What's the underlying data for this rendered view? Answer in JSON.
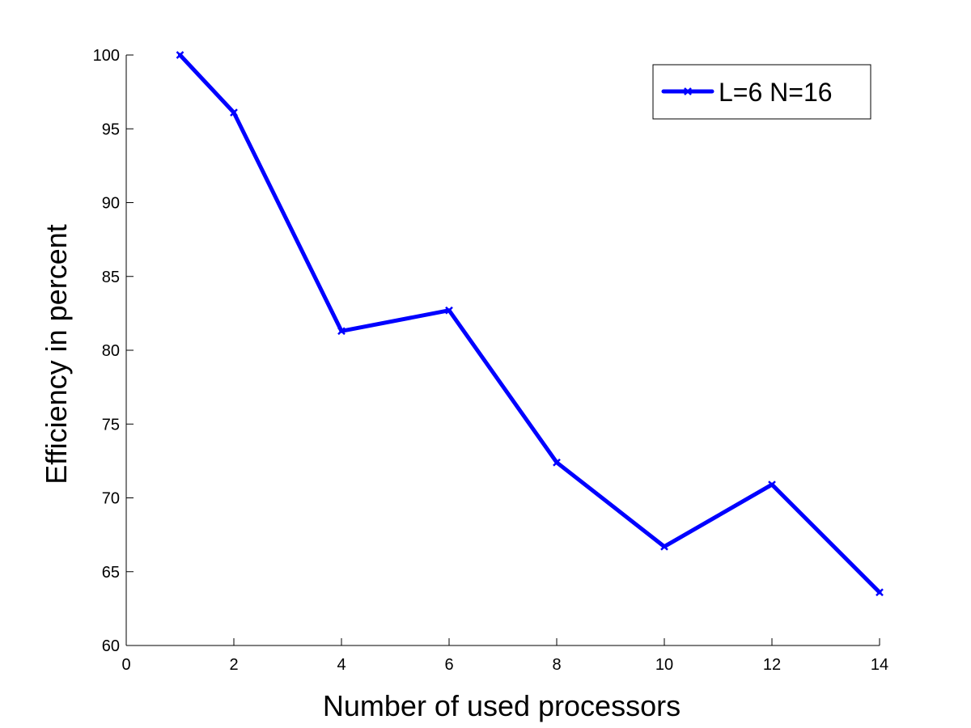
{
  "chart_data": {
    "type": "line",
    "title": "",
    "xlabel": "Number of used processors",
    "ylabel": "Efficiency in percent",
    "xlim": [
      0,
      14
    ],
    "ylim": [
      60,
      100
    ],
    "xticks": [
      0,
      2,
      4,
      6,
      8,
      10,
      12,
      14
    ],
    "yticks": [
      60,
      65,
      70,
      75,
      80,
      85,
      90,
      95,
      100
    ],
    "xtick_labels": [
      "0",
      "2",
      "4",
      "6",
      "8",
      "10",
      "12",
      "14"
    ],
    "ytick_labels": [
      "60",
      "65",
      "70",
      "75",
      "80",
      "85",
      "90",
      "95",
      "100"
    ],
    "grid": false,
    "legend_position": "top-right",
    "series": [
      {
        "name": "L=6 N=16",
        "color": "#0000ff",
        "marker": "x",
        "x": [
          1,
          2,
          4,
          6,
          8,
          10,
          12,
          14
        ],
        "y": [
          100,
          96.1,
          81.3,
          82.7,
          72.4,
          66.7,
          70.9,
          63.6
        ]
      }
    ]
  }
}
